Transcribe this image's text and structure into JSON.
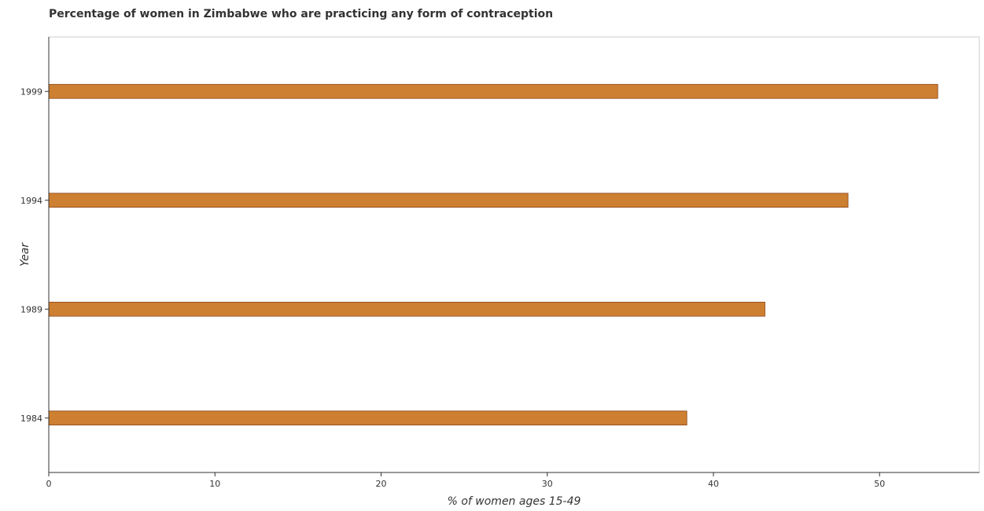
{
  "chart_data": {
    "type": "bar",
    "orientation": "horizontal",
    "title": "Percentage of women in Zimbabwe who are practicing any form of contraception",
    "xlabel": "% of women ages 15-49",
    "ylabel": "Year",
    "categories": [
      "1984",
      "1989",
      "1994",
      "1999"
    ],
    "values": [
      38.4,
      43.1,
      48.1,
      53.5
    ],
    "xlim": [
      0,
      56
    ],
    "xticks": [
      0,
      10,
      20,
      30,
      40,
      50
    ],
    "grid": false,
    "legend": "none",
    "bar_color": "#cd7f32",
    "bar_edge_color": "#8b4513"
  }
}
